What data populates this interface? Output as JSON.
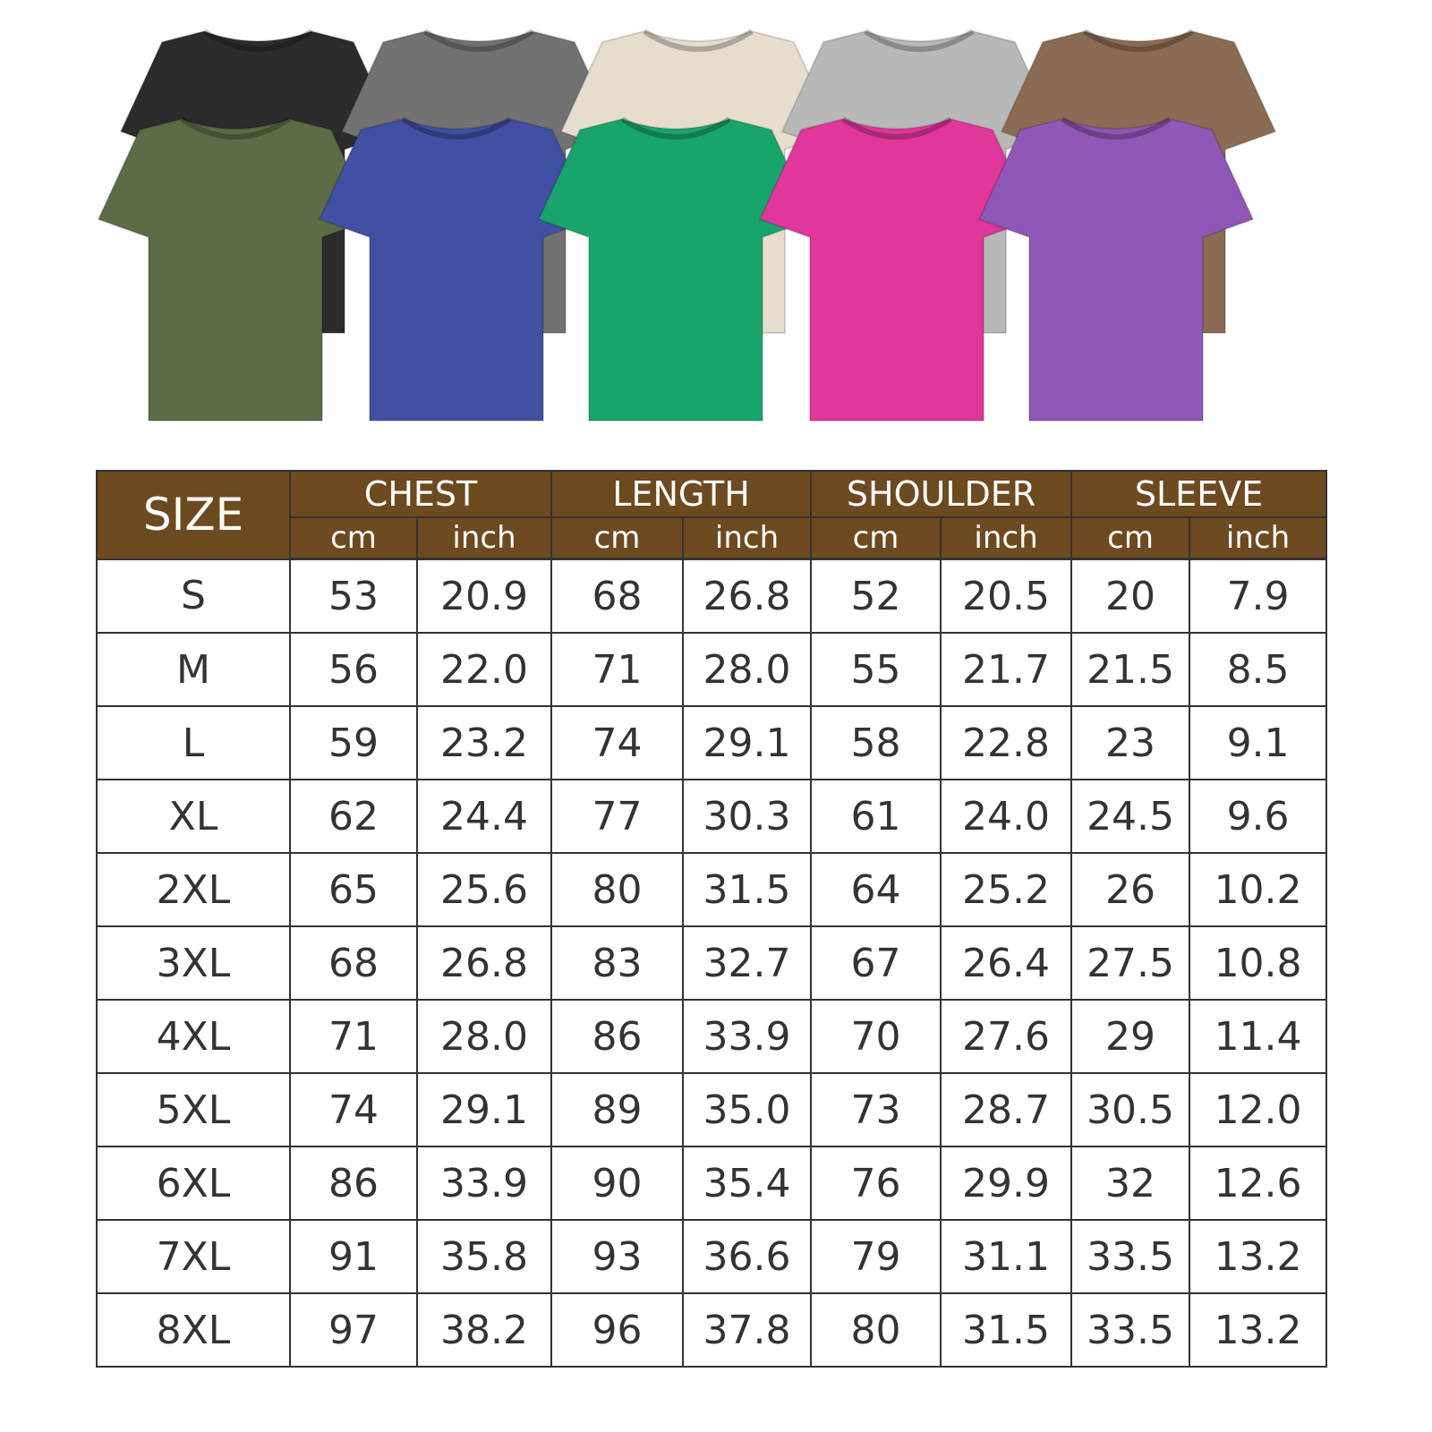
{
  "colors": {
    "header_bg": "#6e4a20",
    "header_text": "#ffffff",
    "grid": "#333333"
  },
  "shirts": {
    "back_row": [
      "#2c2c2c",
      "#727272",
      "#e7ddcc",
      "#b8b8b8",
      "#8c6b54"
    ],
    "front_row": [
      "#5b6c46",
      "#4150a2",
      "#18a56b",
      "#e1369b",
      "#8f57b6"
    ]
  },
  "table": {
    "size_header": "SIZE",
    "groups": [
      "CHEST",
      "LENGTH",
      "SHOULDER",
      "SLEEVE"
    ],
    "units": [
      "cm",
      "inch"
    ],
    "rows": [
      [
        "S",
        "53",
        "20.9",
        "68",
        "26.8",
        "52",
        "20.5",
        "20",
        "7.9"
      ],
      [
        "M",
        "56",
        "22.0",
        "71",
        "28.0",
        "55",
        "21.7",
        "21.5",
        "8.5"
      ],
      [
        "L",
        "59",
        "23.2",
        "74",
        "29.1",
        "58",
        "22.8",
        "23",
        "9.1"
      ],
      [
        "XL",
        "62",
        "24.4",
        "77",
        "30.3",
        "61",
        "24.0",
        "24.5",
        "9.6"
      ],
      [
        "2XL",
        "65",
        "25.6",
        "80",
        "31.5",
        "64",
        "25.2",
        "26",
        "10.2"
      ],
      [
        "3XL",
        "68",
        "26.8",
        "83",
        "32.7",
        "67",
        "26.4",
        "27.5",
        "10.8"
      ],
      [
        "4XL",
        "71",
        "28.0",
        "86",
        "33.9",
        "70",
        "27.6",
        "29",
        "11.4"
      ],
      [
        "5XL",
        "74",
        "29.1",
        "89",
        "35.0",
        "73",
        "28.7",
        "30.5",
        "12.0"
      ],
      [
        "6XL",
        "86",
        "33.9",
        "90",
        "35.4",
        "76",
        "29.9",
        "32",
        "12.6"
      ],
      [
        "7XL",
        "91",
        "35.8",
        "93",
        "36.6",
        "79",
        "31.1",
        "33.5",
        "13.2"
      ],
      [
        "8XL",
        "97",
        "38.2",
        "96",
        "37.8",
        "80",
        "31.5",
        "33.5",
        "13.2"
      ]
    ]
  }
}
